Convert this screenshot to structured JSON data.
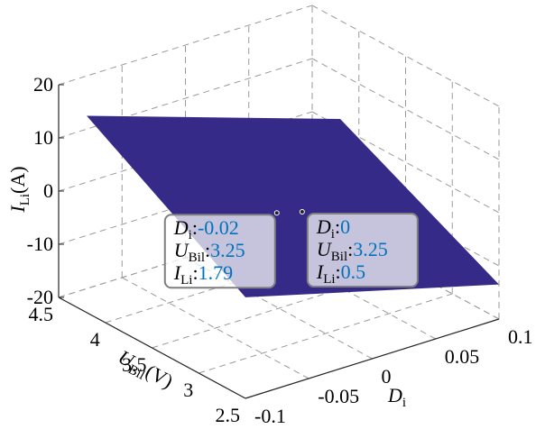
{
  "chart_data": {
    "type": "surface3d",
    "x": [
      -0.1,
      0.1
    ],
    "y": [
      2.5,
      4.2
    ],
    "z": [
      [
        -1,
        -13.5
      ],
      [
        17,
        1.5
      ]
    ],
    "xlim": [
      -0.1,
      0.1
    ],
    "xticks": [
      -0.1,
      -0.05,
      0,
      0.05,
      0.1
    ],
    "ylim": [
      2.5,
      4.5
    ],
    "yticks": [
      2.5,
      3,
      3.5,
      4,
      4.5
    ],
    "zlim": [
      -20,
      20
    ],
    "zticks": [
      -20,
      -10,
      0,
      10,
      20
    ],
    "xlabel": {
      "main": "D",
      "sub": "i"
    },
    "ylabel": {
      "main": "U",
      "sub": "Bil",
      "unit": "(V)"
    },
    "zlabel": {
      "main": "I",
      "sub": "Li",
      "unit": "(A)"
    },
    "grid": true,
    "colormap": [
      "#352a87",
      "#0f5cdd",
      "#1481d6",
      "#06a4ca",
      "#2eb7a4",
      "#87bf77",
      "#d1bb59",
      "#fec832",
      "#f9fb0e"
    ],
    "datatip_fields": [
      {
        "main": "D",
        "sub": "i",
        "sep": ":"
      },
      {
        "main": "U",
        "sub": "Bil",
        "sep": ":"
      },
      {
        "main": "I",
        "sub": "Li",
        "sep": ":"
      }
    ],
    "datatips": [
      {
        "x": -0.02,
        "y": 3.25,
        "z": 1.79
      },
      {
        "x": 0,
        "y": 3.25,
        "z": 0.5
      }
    ],
    "datatip_value_color": "#0072bd"
  }
}
